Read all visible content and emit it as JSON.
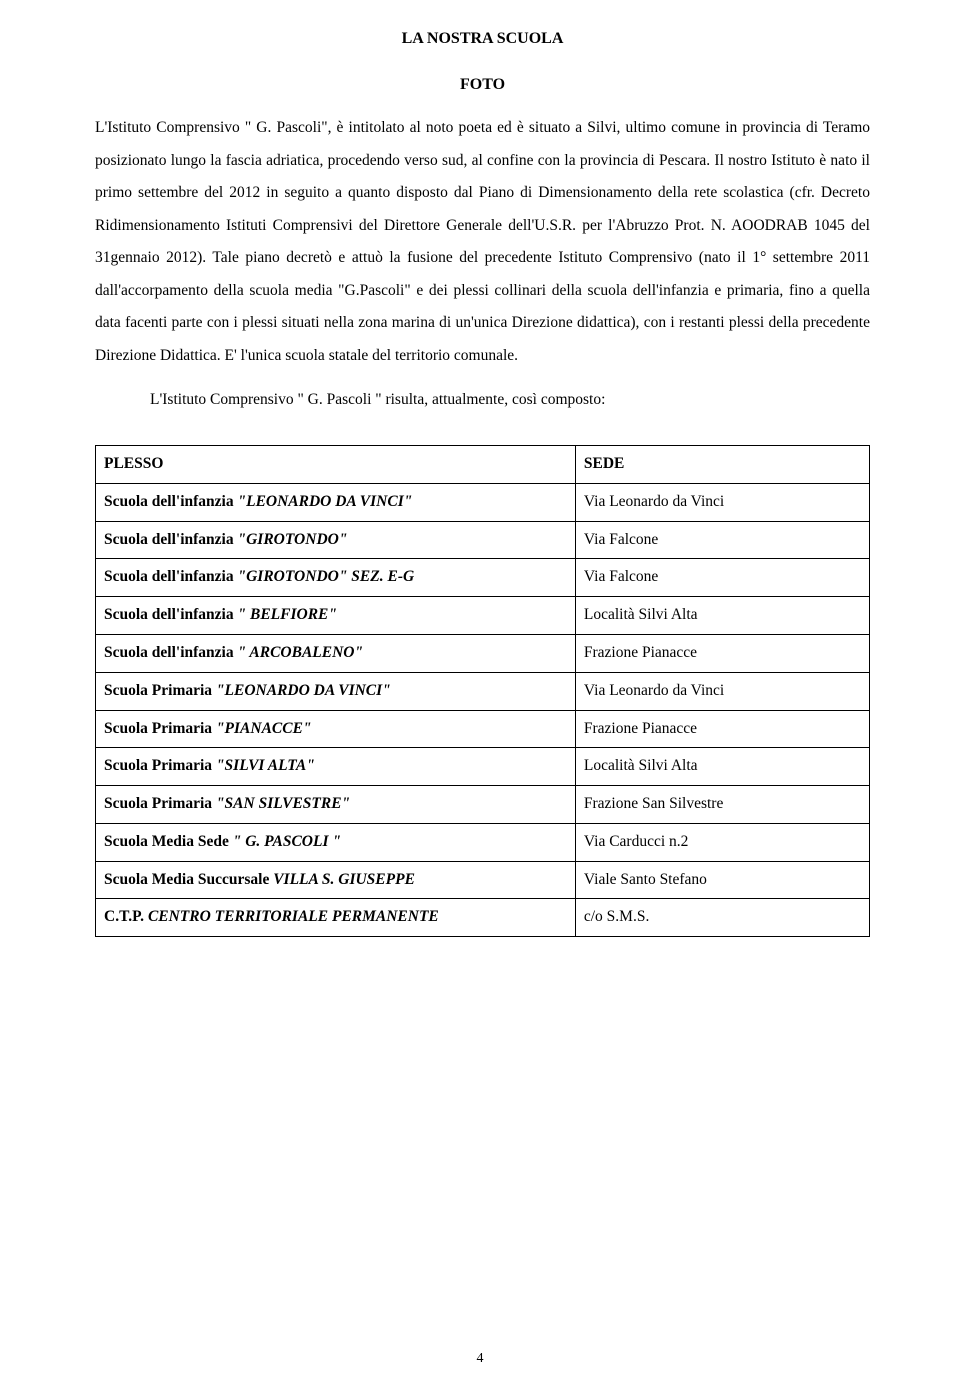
{
  "header": {
    "title_main": "LA  NOSTRA  SCUOLA",
    "title_sub": "FOTO"
  },
  "paragraph_main": "L'Istituto Comprensivo \" G. Pascoli\",  è  intitolato al noto poeta ed è situato a Silvi, ultimo comune in provincia di Teramo posizionato lungo la fascia adriatica, procedendo verso sud, al confine con la provincia di Pescara. Il nostro Istituto è nato il primo settembre del 2012 in seguito a quanto disposto dal Piano di Dimensionamento della  rete  scolastica  (cfr.  Decreto    Ridimensionamento Istituti Comprensivi del   Direttore   Generale dell'U.S.R.  per l'Abruzzo Prot. N. AOODRAB 1045 del 31gennaio 2012). Tale piano decretò e attuò la fusione del precedente Istituto Comprensivo (nato il 1° settembre 2011 dall'accorpamento della scuola media \"G.Pascoli\" e dei plessi collinari della scuola dell'infanzia e primaria, fino a quella data  facenti parte con i plessi situati nella zona marina di un'unica Direzione didattica), con i restanti plessi  della precedente Direzione Didattica. E' l'unica scuola statale del territorio comunale.",
  "paragraph_indent": "L'Istituto Comprensivo \" G. Pascoli \" risulta, attualmente, così composto:",
  "table": {
    "header": {
      "col_a": "PLESSO",
      "col_b": "SEDE"
    },
    "rows": [
      {
        "a_pre": "Scuola dell'infanzia  ",
        "a_ital": "\"LEONARDO DA VINCI\"",
        "b": "Via Leonardo da Vinci"
      },
      {
        "a_pre": "Scuola dell'infanzia ",
        "a_ital": "\"GIROTONDO\"",
        "b": "Via Falcone"
      },
      {
        "a_pre": "Scuola dell'infanzia  ",
        "a_ital": "\"GIROTONDO\" SEZ. E-G",
        "b": "Via Falcone"
      },
      {
        "a_pre": "Scuola dell'infanzia ",
        "a_ital": "\" BELFIORE\"",
        "b": "Località Silvi Alta"
      },
      {
        "a_pre": "Scuola dell'infanzia ",
        "a_ital": "\" ARCOBALENO\"",
        "b": "Frazione Pianacce"
      },
      {
        "a_pre": "Scuola Primaria ",
        "a_ital": "\"LEONARDO DA VINCI\"",
        "b": "Via Leonardo da Vinci"
      },
      {
        "a_pre": "Scuola Primaria ",
        "a_ital": "\"PIANACCE\"",
        "b": "Frazione Pianacce"
      },
      {
        "a_pre": "Scuola Primaria ",
        "a_ital": "\"SILVI ALTA\"",
        "b": "Località Silvi Alta"
      },
      {
        "a_pre": "Scuola Primaria ",
        "a_ital": "\"SAN SILVESTRE\"",
        "b": "Frazione San Silvestre"
      },
      {
        "a_pre": "Scuola Media Sede ",
        "a_ital": "\" G. PASCOLI \"",
        "b": "Via Carducci n.2"
      },
      {
        "a_pre": "Scuola Media  Succursale ",
        "a_ital": "VILLA S. GIUSEPPE",
        "b": "Viale Santo Stefano"
      },
      {
        "a_pre": "C.T.P. ",
        "a_ital": "CENTRO TERRITORIALE PERMANENTE",
        "b": "c/o S.M.S."
      }
    ]
  },
  "page_number": "4"
}
